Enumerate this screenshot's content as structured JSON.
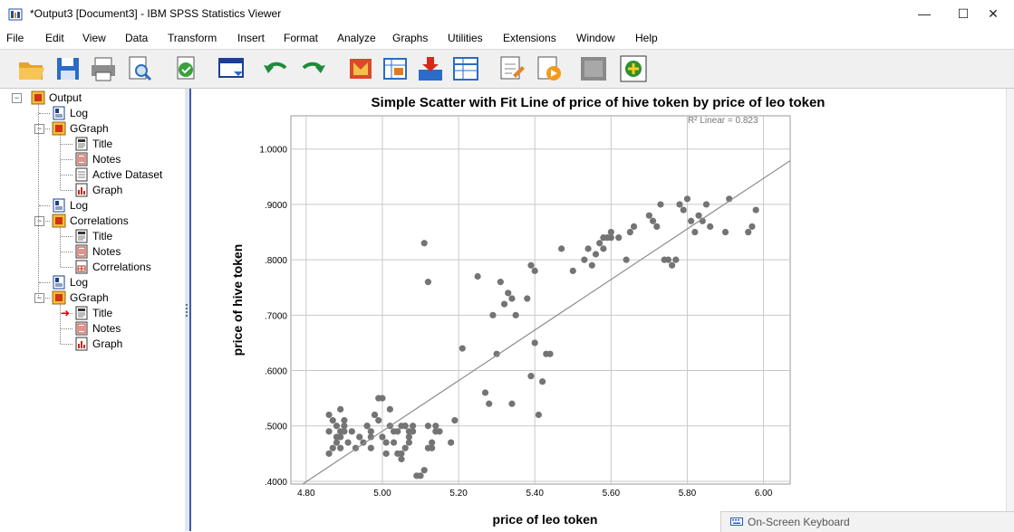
{
  "window": {
    "title": "*Output3 [Document3] - IBM SPSS Statistics Viewer",
    "controls": {
      "minimize": "—",
      "maximize": "☐",
      "close": "✕"
    }
  },
  "menu": [
    "File",
    "Edit",
    "View",
    "Data",
    "Transform",
    "Insert",
    "Format",
    "Analyze",
    "Graphs",
    "Utilities",
    "Extensions",
    "Window",
    "Help"
  ],
  "toolbar": [
    "open-icon",
    "save-icon",
    "print-icon",
    "print-preview-icon",
    "export-icon",
    "recall-dialog-icon",
    "undo-icon",
    "redo-icon",
    "goto-data-icon",
    "goto-case-icon",
    "insert-variable-icon",
    "variables-icon",
    "designate-window-icon",
    "run-script-icon",
    "output-icon",
    "create-new-icon"
  ],
  "tree": {
    "root": "Output",
    "items": [
      {
        "label": "Log",
        "icon": "log-icon"
      },
      {
        "label": "GGraph",
        "icon": "procedure-icon",
        "children": [
          {
            "label": "Title",
            "icon": "title-icon"
          },
          {
            "label": "Notes",
            "icon": "notes-icon"
          },
          {
            "label": "Active Dataset",
            "icon": "dataset-icon"
          },
          {
            "label": "Graph",
            "icon": "graph-icon"
          }
        ]
      },
      {
        "label": "Log",
        "icon": "log-icon"
      },
      {
        "label": "Correlations",
        "icon": "procedure-icon",
        "children": [
          {
            "label": "Title",
            "icon": "title-icon"
          },
          {
            "label": "Notes",
            "icon": "notes-icon"
          },
          {
            "label": "Correlations",
            "icon": "table-icon"
          }
        ]
      },
      {
        "label": "Log",
        "icon": "log-icon"
      },
      {
        "label": "GGraph",
        "icon": "procedure-icon",
        "children": [
          {
            "label": "Title",
            "icon": "title-icon",
            "current": true
          },
          {
            "label": "Notes",
            "icon": "notes-icon"
          },
          {
            "label": "Graph",
            "icon": "graph-icon"
          }
        ]
      }
    ]
  },
  "chart_data": {
    "type": "scatter",
    "title": "Simple Scatter with Fit Line of price of hive token by price of leo token",
    "xlabel": "price of leo token",
    "ylabel": "price of hive token",
    "xlim": [
      4.76,
      6.07
    ],
    "ylim": [
      0.395,
      1.06
    ],
    "xticks": [
      "4.80",
      "5.00",
      "5.20",
      "5.40",
      "5.60",
      "5.80",
      "6.00"
    ],
    "xtick_values": [
      4.8,
      5.0,
      5.2,
      5.4,
      5.6,
      5.8,
      6.0
    ],
    "yticks": [
      ".4000",
      ".5000",
      ".6000",
      ".7000",
      ".8000",
      ".9000",
      "1.0000"
    ],
    "ytick_values": [
      0.4,
      0.5,
      0.6,
      0.7,
      0.8,
      0.9,
      1.0
    ],
    "grid": true,
    "annotation": "R² Linear = 0.823",
    "fit_line": {
      "x": [
        4.78,
        6.07
      ],
      "y": [
        0.39,
        0.979
      ]
    },
    "point_color": "#747474",
    "line_color": "#8c8c8c",
    "x": [
      4.86,
      4.87,
      4.88,
      4.89,
      4.89,
      4.9,
      4.86,
      4.88,
      4.9,
      4.87,
      4.89,
      4.88,
      4.91,
      4.92,
      4.93,
      4.94,
      4.86,
      4.89,
      4.9,
      4.95,
      4.96,
      4.97,
      4.98,
      4.99,
      5.0,
      4.97,
      4.98,
      5.01,
      5.02,
      5.03,
      4.99,
      5.0,
      4.96,
      4.97,
      5.01,
      5.04,
      5.05,
      5.06,
      5.07,
      5.03,
      5.04,
      5.05,
      5.06,
      5.07,
      5.02,
      5.05,
      5.08,
      5.09,
      5.1,
      5.11,
      5.06,
      5.07,
      5.08,
      5.12,
      5.12,
      5.13,
      5.14,
      5.13,
      5.15,
      5.14,
      5.11,
      5.12,
      5.18,
      5.19,
      5.21,
      5.25,
      5.27,
      5.28,
      5.29,
      5.3,
      5.31,
      5.32,
      5.33,
      5.34,
      5.34,
      5.35,
      5.38,
      5.39,
      5.39,
      5.4,
      5.4,
      5.41,
      5.42,
      5.43,
      5.44,
      5.47,
      5.5,
      5.53,
      5.54,
      5.55,
      5.56,
      5.57,
      5.58,
      5.58,
      5.59,
      5.6,
      5.6,
      5.62,
      5.64,
      5.65,
      5.66,
      5.7,
      5.71,
      5.72,
      5.73,
      5.74,
      5.75,
      5.76,
      5.77,
      5.78,
      5.79,
      5.8,
      5.81,
      5.82,
      5.83,
      5.84,
      5.85,
      5.86,
      5.9,
      5.91,
      5.96,
      5.97,
      5.98
    ],
    "y": [
      0.52,
      0.51,
      0.5,
      0.53,
      0.49,
      0.51,
      0.49,
      0.48,
      0.5,
      0.46,
      0.48,
      0.47,
      0.47,
      0.49,
      0.46,
      0.48,
      0.45,
      0.46,
      0.49,
      0.47,
      0.5,
      0.49,
      0.52,
      0.55,
      0.55,
      0.48,
      0.52,
      0.47,
      0.5,
      0.49,
      0.51,
      0.48,
      0.5,
      0.46,
      0.45,
      0.45,
      0.44,
      0.46,
      0.47,
      0.47,
      0.49,
      0.5,
      0.5,
      0.48,
      0.53,
      0.45,
      0.5,
      0.41,
      0.41,
      0.42,
      0.5,
      0.49,
      0.49,
      0.5,
      0.46,
      0.46,
      0.5,
      0.47,
      0.49,
      0.49,
      0.83,
      0.76,
      0.47,
      0.51,
      0.64,
      0.77,
      0.56,
      0.54,
      0.7,
      0.63,
      0.76,
      0.72,
      0.74,
      0.54,
      0.73,
      0.7,
      0.73,
      0.59,
      0.79,
      0.78,
      0.65,
      0.52,
      0.58,
      0.63,
      0.63,
      0.82,
      0.78,
      0.8,
      0.82,
      0.79,
      0.81,
      0.83,
      0.84,
      0.82,
      0.84,
      0.84,
      0.85,
      0.84,
      0.8,
      0.85,
      0.86,
      0.88,
      0.87,
      0.86,
      0.9,
      0.8,
      0.8,
      0.79,
      0.8,
      0.9,
      0.89,
      0.91,
      0.87,
      0.85,
      0.88,
      0.87,
      0.9,
      0.86,
      0.85,
      0.91,
      0.85,
      0.86,
      0.89
    ]
  },
  "colors": {
    "tree_current_arrow": "#d40000",
    "toolbar_bg": "#f0f0f0",
    "pane_border": "#3c5aa8"
  },
  "taskbar": {
    "keyboard_label": "On-Screen Keyboard",
    "icon": "keyboard-icon"
  }
}
